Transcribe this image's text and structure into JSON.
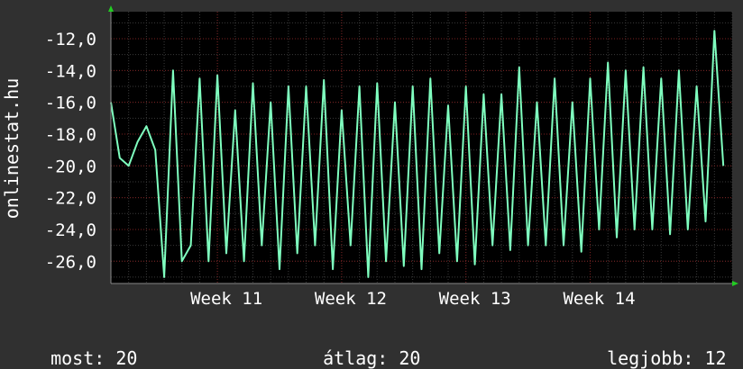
{
  "chart_data": {
    "type": "line",
    "ylabel": "onlinestat.hu",
    "ylim": [
      -27.4,
      -10.3
    ],
    "yticks": [
      -26,
      -24,
      -22,
      -20,
      -18,
      -16,
      -14,
      -12
    ],
    "ytick_labels": [
      "-26,0",
      "-24,0",
      "-22,0",
      "-20,0",
      "-18,0",
      "-16,0",
      "-14,0",
      "-12,0"
    ],
    "x_unit": "day",
    "xlim": [
      0,
      35
    ],
    "xticks": [
      6.0,
      13.0,
      20.0,
      27.0
    ],
    "xtick_labels": [
      "Week 11",
      "Week 12",
      "Week 13",
      "Week 14"
    ],
    "series": [
      {
        "color": "#7fffbf",
        "x": [
          0.0,
          0.5,
          1.0,
          1.5,
          2.0,
          2.5,
          3.0,
          3.5,
          4.0,
          4.5,
          5.0,
          5.5,
          6.0,
          6.5,
          7.0,
          7.5,
          8.0,
          8.5,
          9.0,
          9.5,
          10.0,
          10.5,
          11.0,
          11.5,
          12.0,
          12.5,
          13.0,
          13.5,
          14.0,
          14.5,
          15.0,
          15.5,
          16.0,
          16.5,
          17.0,
          17.5,
          18.0,
          18.5,
          19.0,
          19.5,
          20.0,
          20.5,
          21.0,
          21.5,
          22.0,
          22.5,
          23.0,
          23.5,
          24.0,
          24.5,
          25.0,
          25.5,
          26.0,
          26.5,
          27.0,
          27.5,
          28.0,
          28.5,
          29.0,
          29.5,
          30.0,
          30.5,
          31.0,
          31.5,
          32.0,
          32.5,
          33.0,
          33.5,
          34.0,
          34.5
        ],
        "y": [
          -16.0,
          -19.5,
          -20.0,
          -18.5,
          -17.5,
          -19.0,
          -27.0,
          -14.0,
          -26.0,
          -25.0,
          -14.5,
          -26.0,
          -14.3,
          -25.5,
          -16.5,
          -26.0,
          -14.8,
          -25.0,
          -16.0,
          -26.5,
          -15.0,
          -25.5,
          -15.0,
          -25.0,
          -14.6,
          -26.5,
          -16.5,
          -25.0,
          -15.0,
          -27.0,
          -14.8,
          -26.0,
          -16.0,
          -26.3,
          -15.0,
          -26.5,
          -14.5,
          -25.5,
          -16.2,
          -26.0,
          -15.0,
          -26.2,
          -15.5,
          -25.0,
          -15.5,
          -25.3,
          -13.8,
          -25.0,
          -16.0,
          -25.0,
          -14.5,
          -25.0,
          -16.0,
          -25.4,
          -14.5,
          -24.0,
          -13.5,
          -24.5,
          -14.0,
          -24.0,
          -13.8,
          -24.0,
          -14.5,
          -24.3,
          -14.0,
          -24.0,
          -15.0,
          -23.5,
          -11.5,
          -20.0
        ]
      }
    ]
  },
  "footer": {
    "current": {
      "label": "most:",
      "value": "20"
    },
    "average": {
      "label": "átlag:",
      "value": "20"
    },
    "best": {
      "label": "legjobb:",
      "value": "12"
    }
  }
}
